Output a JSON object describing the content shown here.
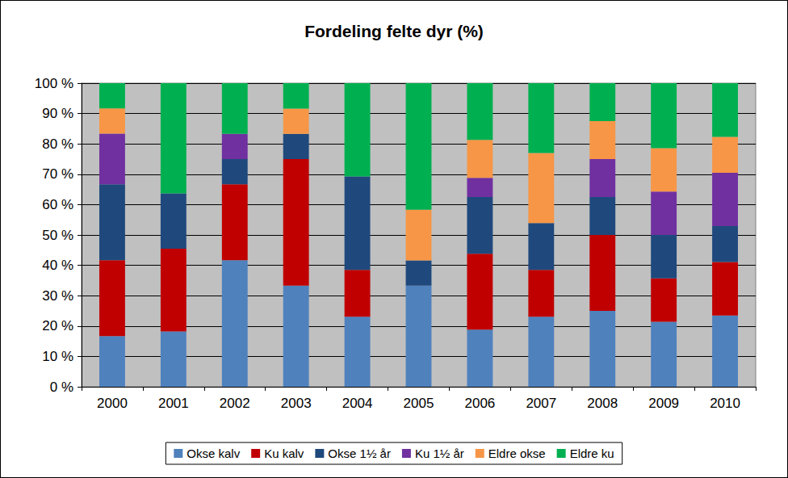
{
  "chart_data": {
    "type": "bar",
    "title": "Fordeling felte dyr (%)",
    "stacked": true,
    "grid": true,
    "legend": "bottom",
    "categories": [
      "2000",
      "2001",
      "2002",
      "2003",
      "2004",
      "2005",
      "2006",
      "2007",
      "2008",
      "2009",
      "2010"
    ],
    "series": [
      {
        "name": "Okse kalv",
        "color": "#4F81BD",
        "values": [
          16.7,
          18.2,
          41.7,
          33.3,
          23.1,
          33.3,
          18.8,
          23.1,
          25.0,
          21.4,
          23.5
        ]
      },
      {
        "name": "Ku kalv",
        "color": "#C00000",
        "values": [
          25.0,
          27.3,
          25.0,
          41.7,
          15.4,
          0,
          25.0,
          15.4,
          25.0,
          14.3,
          17.6
        ]
      },
      {
        "name": "Okse 1½ år",
        "color": "#1F497D",
        "values": [
          25.0,
          18.2,
          8.3,
          8.3,
          30.8,
          8.3,
          18.7,
          15.4,
          12.5,
          14.3,
          11.8
        ]
      },
      {
        "name": "Ku 1½ år",
        "color": "#7030A0",
        "values": [
          16.7,
          0,
          8.3,
          0,
          0,
          0,
          6.3,
          0,
          12.5,
          14.3,
          17.6
        ]
      },
      {
        "name": "Eldre okse",
        "color": "#F79646",
        "values": [
          8.3,
          0,
          0,
          8.3,
          0,
          16.7,
          12.5,
          23.1,
          12.5,
          14.3,
          11.8
        ]
      },
      {
        "name": "Eldre ku",
        "color": "#00B050",
        "values": [
          8.3,
          36.3,
          16.7,
          8.4,
          30.7,
          41.7,
          18.7,
          23.0,
          12.5,
          21.4,
          17.7
        ]
      }
    ],
    "ylim": [
      0,
      100
    ],
    "yticks": [
      {
        "value": 0,
        "label": "0 %"
      },
      {
        "value": 10,
        "label": "10 %"
      },
      {
        "value": 20,
        "label": "20 %"
      },
      {
        "value": 30,
        "label": "30 %"
      },
      {
        "value": 40,
        "label": "40 %"
      },
      {
        "value": 50,
        "label": "50 %"
      },
      {
        "value": 60,
        "label": "60 %"
      },
      {
        "value": 70,
        "label": "70 %"
      },
      {
        "value": 80,
        "label": "80 %"
      },
      {
        "value": 90,
        "label": "90 %"
      },
      {
        "value": 100,
        "label": "100 %"
      }
    ]
  }
}
